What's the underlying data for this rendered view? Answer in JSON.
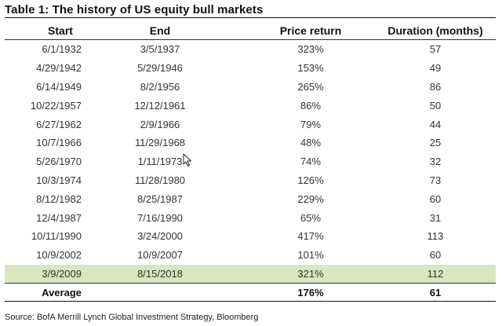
{
  "title": "Table 1: The history of US equity bull markets",
  "headers": {
    "start": "Start",
    "end": "End",
    "price_return": "Price return",
    "duration": "Duration (months)"
  },
  "rows": [
    {
      "start": "6/1/1932",
      "end": "3/5/1937",
      "price_return": "323%",
      "duration": "57"
    },
    {
      "start": "4/29/1942",
      "end": "5/29/1946",
      "price_return": "153%",
      "duration": "49"
    },
    {
      "start": "6/14/1949",
      "end": "8/2/1956",
      "price_return": "265%",
      "duration": "86"
    },
    {
      "start": "10/22/1957",
      "end": "12/12/1961",
      "price_return": "86%",
      "duration": "50"
    },
    {
      "start": "6/27/1962",
      "end": "2/9/1966",
      "price_return": "79%",
      "duration": "44"
    },
    {
      "start": "10/7/1966",
      "end": "11/29/1968",
      "price_return": "48%",
      "duration": "25"
    },
    {
      "start": "5/26/1970",
      "end": "1/11/1973",
      "price_return": "74%",
      "duration": "32"
    },
    {
      "start": "10/3/1974",
      "end": "11/28/1980",
      "price_return": "126%",
      "duration": "73"
    },
    {
      "start": "8/12/1982",
      "end": "8/25/1987",
      "price_return": "229%",
      "duration": "60"
    },
    {
      "start": "12/4/1987",
      "end": "7/16/1990",
      "price_return": "65%",
      "duration": "31"
    },
    {
      "start": "10/11/1990",
      "end": "3/24/2000",
      "price_return": "417%",
      "duration": "113"
    },
    {
      "start": "10/9/2002",
      "end": "10/9/2007",
      "price_return": "101%",
      "duration": "60"
    },
    {
      "start": "3/9/2009",
      "end": "8/15/2018",
      "price_return": "321%",
      "duration": "112"
    }
  ],
  "average": {
    "label": "Average",
    "price_return": "176%",
    "duration": "61"
  },
  "source": "Source: BofA Merrill Lynch Global Investment Strategy, Bloomberg",
  "colors": {
    "highlight": "#d9e6be"
  },
  "icons": {
    "cursor": "mouse-pointer-icon"
  }
}
